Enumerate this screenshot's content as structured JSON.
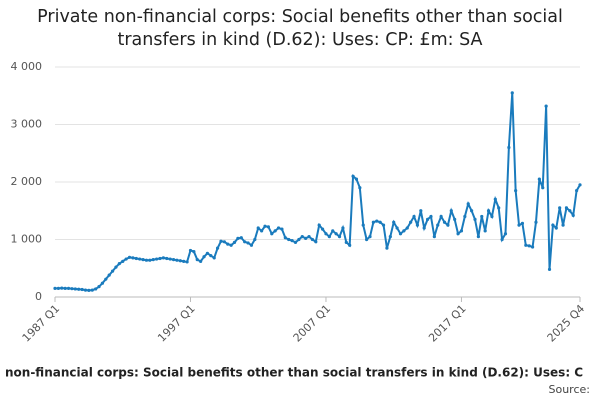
{
  "chart_data": {
    "type": "line",
    "title": "Private non-financial corps: Social benefits other than social transfers in kind (D.62): Uses: CP: £m: SA",
    "categories": [
      "1987 Q1",
      null,
      null,
      null,
      null,
      null,
      null,
      null,
      null,
      null,
      null,
      null,
      null,
      null,
      null,
      null,
      null,
      null,
      null,
      null,
      null,
      null,
      null,
      null,
      null,
      null,
      null,
      null,
      null,
      null,
      null,
      null,
      null,
      null,
      null,
      null,
      null,
      null,
      null,
      null,
      "1997 Q1",
      null,
      null,
      null,
      null,
      null,
      null,
      null,
      null,
      null,
      null,
      null,
      null,
      null,
      null,
      null,
      null,
      null,
      null,
      null,
      null,
      null,
      null,
      null,
      null,
      null,
      null,
      null,
      null,
      null,
      null,
      null,
      null,
      null,
      null,
      null,
      null,
      null,
      null,
      null,
      "2007 Q1",
      null,
      null,
      null,
      null,
      null,
      null,
      null,
      null,
      null,
      null,
      null,
      null,
      null,
      null,
      null,
      null,
      null,
      null,
      null,
      null,
      null,
      null,
      null,
      null,
      null,
      null,
      null,
      null,
      null,
      null,
      null,
      null,
      null,
      null,
      null,
      null,
      null,
      null,
      null,
      "2017 Q1",
      null,
      null,
      null,
      null,
      null,
      null,
      null,
      null,
      null,
      null,
      null,
      null,
      null,
      null,
      null,
      null,
      null,
      null,
      null,
      null,
      null,
      null,
      null,
      null,
      null,
      null,
      null,
      null,
      null,
      null,
      null,
      null,
      null,
      null,
      "2025 Q4"
    ],
    "series": [
      {
        "name": "non-financial corps: Social benefits other than social transfers in kind (D.62): Uses: C",
        "color": "#1a7bbd",
        "values": [
          150,
          150,
          155,
          150,
          150,
          145,
          140,
          135,
          130,
          120,
          115,
          120,
          140,
          180,
          240,
          310,
          380,
          450,
          520,
          580,
          620,
          660,
          690,
          680,
          670,
          660,
          650,
          640,
          640,
          650,
          660,
          670,
          680,
          670,
          660,
          650,
          640,
          630,
          620,
          610,
          810,
          790,
          650,
          620,
          700,
          760,
          720,
          680,
          850,
          970,
          960,
          920,
          900,
          950,
          1020,
          1030,
          960,
          940,
          900,
          1000,
          1200,
          1150,
          1230,
          1220,
          1100,
          1150,
          1200,
          1180,
          1030,
          1000,
          980,
          950,
          1000,
          1050,
          1020,
          1050,
          1000,
          960,
          1250,
          1180,
          1100,
          1050,
          1150,
          1100,
          1050,
          1200,
          950,
          900,
          2100,
          2050,
          1900,
          1250,
          1000,
          1050,
          1300,
          1320,
          1300,
          1250,
          850,
          1050,
          1300,
          1200,
          1100,
          1150,
          1200,
          1300,
          1400,
          1250,
          1500,
          1200,
          1350,
          1400,
          1050,
          1250,
          1400,
          1300,
          1250,
          1500,
          1350,
          1100,
          1150,
          1400,
          1620,
          1500,
          1350,
          1050,
          1400,
          1150,
          1500,
          1400,
          1700,
          1550,
          1000,
          1100,
          2600,
          3550,
          1850,
          1250,
          1280,
          900,
          890,
          870,
          1300,
          2050,
          1900,
          3320,
          480,
          1250,
          1200,
          1550,
          1250,
          1550,
          1500,
          1420,
          1850,
          1950
        ]
      }
    ],
    "ylim": [
      0,
      4000
    ],
    "yticks": [
      0,
      {
        "value": 1000,
        "label": "1 000"
      },
      {
        "value": 2000,
        "label": "2 000"
      },
      {
        "value": 3000,
        "label": "3 000"
      },
      {
        "value": 4000,
        "label": "4 000"
      }
    ],
    "grid": true,
    "source": "Source:"
  }
}
